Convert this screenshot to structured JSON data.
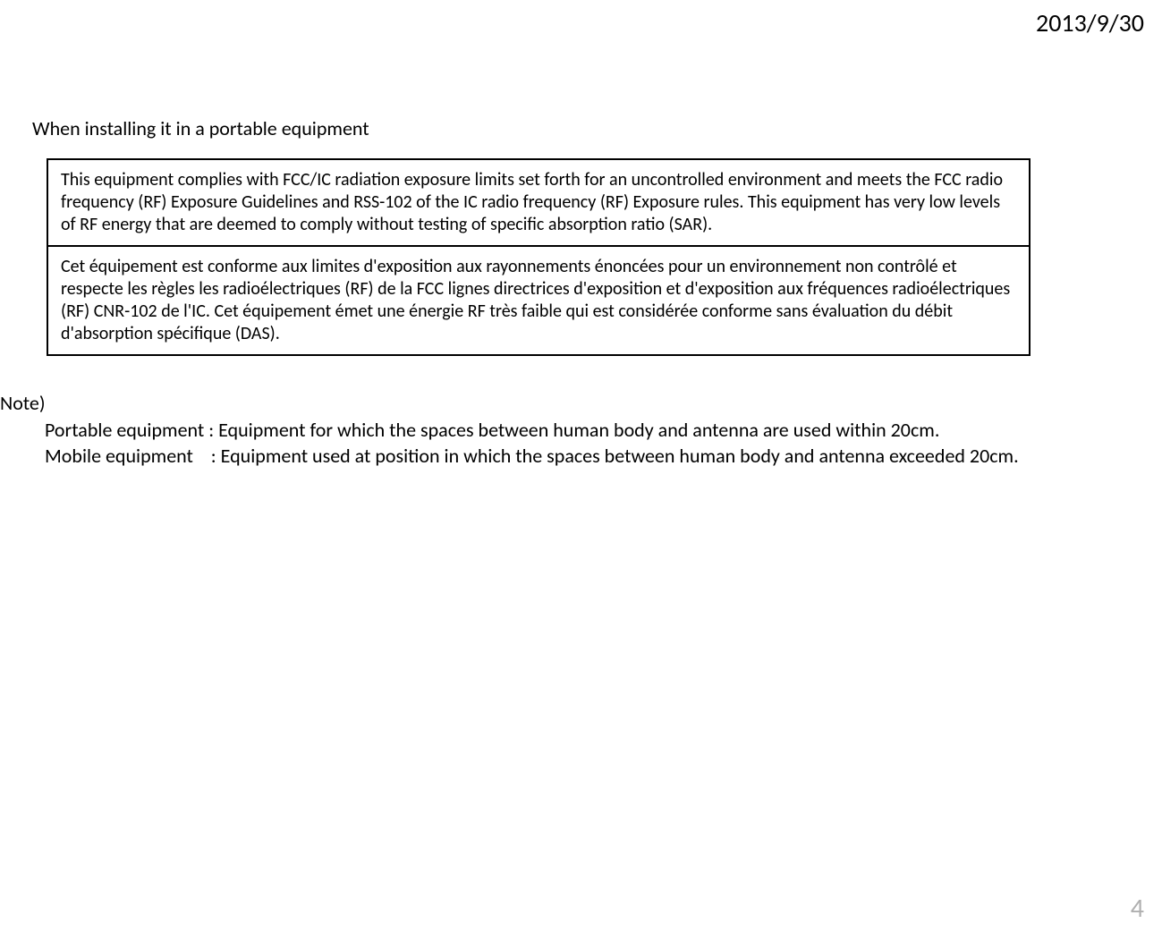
{
  "header": {
    "date": "2013/9/30"
  },
  "section": {
    "title": "When installing it in a portable equipment",
    "box_en": "This equipment complies with FCC/IC radiation exposure limits set forth for an uncontrolled environment and meets the FCC radio frequency (RF) Exposure Guidelines and RSS-102 of the IC radio frequency (RF) Exposure rules. This equipment has very low levels of RF energy that are deemed to comply without testing of specific absorption ratio (SAR).",
    "box_fr": "Cet équipement est conforme aux limites d'exposition aux rayonnements énoncées pour un environnement non contrôlé et respecte les règles les radioélectriques (RF) de la FCC lignes directrices d'exposition et d'exposition aux fréquences radioélectriques (RF) CNR-102 de l'IC. Cet équipement émet une énergie RF très faible qui est considérée conforme sans évaluation du débit d'absorption spécifique (DAS)."
  },
  "note": {
    "label": "Note)",
    "portable_term": "Portable equipment : ",
    "portable_def": "Equipment for which the spaces between human body and antenna are used within 20cm.",
    "mobile_term": "Mobile equipment    : ",
    "mobile_def": "Equipment used at position in which the spaces between human body and antenna exceeded 20cm."
  },
  "footer": {
    "page": "4"
  }
}
